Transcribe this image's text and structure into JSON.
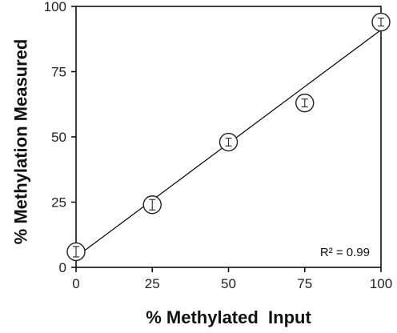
{
  "chart_data": {
    "type": "scatter",
    "xlabel": "% Methylated  Input",
    "ylabel": "% Methylation Measured",
    "xlim": [
      0,
      100
    ],
    "ylim": [
      0,
      100
    ],
    "xticks": [
      0,
      25,
      50,
      75,
      100
    ],
    "yticks": [
      0,
      25,
      50,
      75,
      100
    ],
    "xtick_labels": [
      "0",
      "25",
      "50",
      "75",
      "100"
    ],
    "ytick_labels": [
      "0",
      "25",
      "50",
      "75",
      "100"
    ],
    "points": [
      {
        "x": 0,
        "y": 6,
        "err": 2
      },
      {
        "x": 25,
        "y": 24,
        "err": 2
      },
      {
        "x": 50,
        "y": 48,
        "err": 1.5
      },
      {
        "x": 75,
        "y": 63,
        "err": 1.5
      },
      {
        "x": 100,
        "y": 94,
        "err": 1.5
      }
    ],
    "fit_line": {
      "x": [
        0,
        100
      ],
      "y": [
        4,
        91
      ]
    },
    "annotation": "R² = 0.99",
    "annotation_position": "bottom-right",
    "grid": false,
    "legend": "none",
    "colors": {
      "marker": "#222222",
      "line": "#000000",
      "axis": "#000000"
    }
  }
}
